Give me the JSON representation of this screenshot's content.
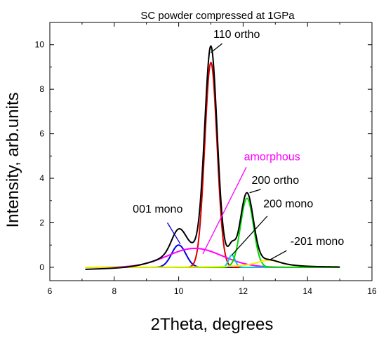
{
  "chart_data": {
    "type": "line",
    "title": "SC powder compressed at 1GPa",
    "xlabel": "2Theta, degrees",
    "ylabel": "Intensity, arb.units",
    "xlim": [
      6,
      16
    ],
    "ylim": [
      -0.6,
      11
    ],
    "x_ticks": [
      6,
      8,
      10,
      12,
      14,
      16
    ],
    "y_ticks": [
      0,
      2,
      4,
      6,
      8,
      10
    ],
    "x_tick_labels": [
      "6",
      "8",
      "10",
      "12",
      "14",
      "16"
    ],
    "y_tick_labels": [
      "0",
      "2",
      "4",
      "6",
      "8",
      "10"
    ],
    "grid": false,
    "legend": "none",
    "peaks": [
      {
        "id": "mono001",
        "shape": "gaussian",
        "center": 10.0,
        "amplitude": 1.0,
        "width": 0.22,
        "color": "#0000dd"
      },
      {
        "id": "ortho110",
        "shape": "gaussian",
        "center": 11.0,
        "amplitude": 9.2,
        "width": 0.19,
        "color": "#dd0000"
      },
      {
        "id": "amorphous",
        "shape": "gaussian",
        "center": 10.5,
        "amplitude": 0.85,
        "width": 0.85,
        "color": "#ff00ff"
      },
      {
        "id": "mono200",
        "shape": "gaussian",
        "center": 11.65,
        "amplitude": 0.55,
        "width": 0.1,
        "color": "#00cccc"
      },
      {
        "id": "ortho200",
        "shape": "gaussian",
        "center": 12.12,
        "amplitude": 3.1,
        "width": 0.2,
        "color": "#00dd00"
      },
      {
        "id": "mono201",
        "shape": "lorentzian",
        "center": 12.8,
        "amplitude": 0.32,
        "width": 0.5,
        "color": "#ffee00"
      }
    ],
    "baseline": -0.1,
    "sum_color": "#000000",
    "curve_range": [
      7.1,
      15.0
    ],
    "annotations": [
      {
        "text": "110 ortho",
        "color": "#000000",
        "label_x": 11.8,
        "label_y": 10.3,
        "arrow_from": [
          11.35,
          10.05
        ],
        "arrow_to": [
          11.0,
          9.65
        ]
      },
      {
        "text": "amorphous",
        "color": "#ff00ff",
        "label_x": 12.9,
        "label_y": 4.8,
        "arrow_from": [
          12.1,
          4.5
        ],
        "arrow_to": [
          10.75,
          0.6
        ]
      },
      {
        "text": "200 ortho",
        "color": "#000000",
        "label_x": 13.0,
        "label_y": 3.75,
        "arrow_from": [
          12.55,
          3.5
        ],
        "arrow_to": [
          12.2,
          3.35
        ]
      },
      {
        "text": "001 mono",
        "color": "#000000",
        "label_x": 9.35,
        "label_y": 2.45,
        "arrow_from": [
          9.65,
          2.0
        ],
        "arrow_to": [
          10.05,
          1.05
        ]
      },
      {
        "text": "200 mono",
        "color": "#000000",
        "label_x": 13.4,
        "label_y": 2.7,
        "arrow_from": [
          12.75,
          2.3
        ],
        "arrow_to": [
          11.65,
          0.55
        ]
      },
      {
        "text": "-201 mono",
        "color": "#000000",
        "label_x": 14.3,
        "label_y": 1.0,
        "arrow_from": [
          13.35,
          0.75
        ],
        "arrow_to": [
          12.85,
          0.35
        ]
      }
    ]
  }
}
